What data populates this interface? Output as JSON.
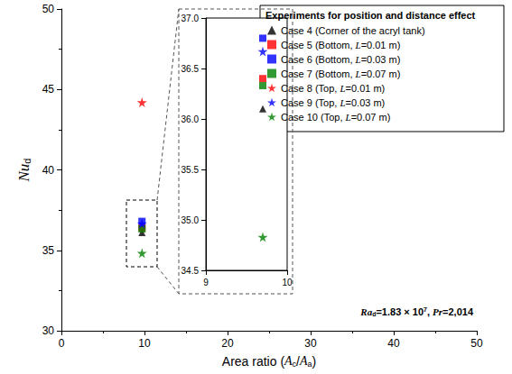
{
  "chart_data": {
    "type": "scatter",
    "x_label": [
      {
        "text": "Area ratio ("
      },
      {
        "text": "A",
        "style": "italic"
      },
      {
        "text": "c",
        "style": "sub"
      },
      {
        "text": "/"
      },
      {
        "text": "A",
        "style": "italic"
      },
      {
        "text": "a",
        "style": "sub"
      },
      {
        "text": ")"
      }
    ],
    "y_label": [
      {
        "text": "Nu",
        "style": "italic"
      },
      {
        "text": "d",
        "style": "sub"
      }
    ],
    "xlim": [
      0,
      50
    ],
    "xticks": [
      0,
      10,
      20,
      30,
      40,
      50
    ],
    "ylim": [
      30,
      50
    ],
    "yticks": [
      30,
      35,
      40,
      45,
      50
    ],
    "grid": false,
    "legend": "top-right",
    "legend_title": "Experiments for position and distance effect",
    "annotation": [
      {
        "text": "Ra",
        "style": "italic"
      },
      {
        "text": "d",
        "style": "sub"
      },
      {
        "text": "=1.83 × 10"
      },
      {
        "text": "7",
        "style": "sup"
      },
      {
        "text": ", "
      },
      {
        "text": "Pr",
        "style": "italic"
      },
      {
        "text": "=2,014"
      }
    ],
    "series": [
      {
        "name": "Case 4 (Corner of the acryl tank)",
        "color": "#000000",
        "marker": "triangle",
        "x": [
          9.7
        ],
        "values": [
          36.1
        ]
      },
      {
        "name": "Case 5 (Bottom, L=0.01 m)",
        "color": "#ff0000",
        "marker": "square",
        "x": [
          9.7
        ],
        "values": [
          36.4
        ]
      },
      {
        "name": "Case 6 (Bottom, L=0.03 m)",
        "color": "#0000ff",
        "marker": "square",
        "x": [
          9.7
        ],
        "values": [
          36.8
        ]
      },
      {
        "name": "Case 7 (Bottom, L=0.07 m)",
        "color": "#008000",
        "marker": "square",
        "x": [
          9.7
        ],
        "values": [
          36.33
        ]
      },
      {
        "name": "Case 8 (Top, L=0.01 m)",
        "color": "#ff0000",
        "marker": "star",
        "x": [
          9.7
        ],
        "values": [
          44.2
        ]
      },
      {
        "name": "Case 9 (Top, L=0.03 m)",
        "color": "#0000ff",
        "marker": "star",
        "x": [
          9.7
        ],
        "values": [
          36.67
        ]
      },
      {
        "name": "Case 10 (Top, L=0.07 m)",
        "color": "#008000",
        "marker": "star",
        "x": [
          9.7
        ],
        "values": [
          34.83
        ]
      }
    ],
    "inset": {
      "xlim": [
        9,
        10
      ],
      "xticks": [
        9,
        10
      ],
      "ylim": [
        34.5,
        37.0
      ],
      "yticks": [
        34.5,
        {
          "value": 35,
          "label": "35.0"
        },
        35.5,
        {
          "value": 36,
          "label": "36.0"
        },
        36.5,
        {
          "value": 37,
          "label": "37.0"
        }
      ]
    }
  }
}
